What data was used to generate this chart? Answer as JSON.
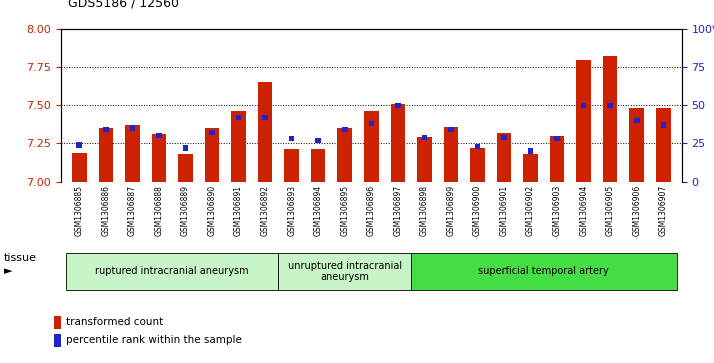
{
  "title": "GDS5186 / 12560",
  "samples": [
    "GSM1306885",
    "GSM1306886",
    "GSM1306887",
    "GSM1306888",
    "GSM1306889",
    "GSM1306890",
    "GSM1306891",
    "GSM1306892",
    "GSM1306893",
    "GSM1306894",
    "GSM1306895",
    "GSM1306896",
    "GSM1306897",
    "GSM1306898",
    "GSM1306899",
    "GSM1306900",
    "GSM1306901",
    "GSM1306902",
    "GSM1306903",
    "GSM1306904",
    "GSM1306905",
    "GSM1306906",
    "GSM1306907"
  ],
  "transformed_count": [
    7.19,
    7.35,
    7.37,
    7.31,
    7.18,
    7.35,
    7.46,
    7.65,
    7.21,
    7.21,
    7.35,
    7.46,
    7.51,
    7.29,
    7.36,
    7.22,
    7.32,
    7.18,
    7.3,
    7.8,
    7.82,
    7.48,
    7.48
  ],
  "percentile_rank": [
    24,
    34,
    35,
    30,
    22,
    32,
    42,
    42,
    28,
    27,
    34,
    38,
    50,
    29,
    34,
    23,
    29,
    20,
    28,
    50,
    50,
    40,
    37
  ],
  "ylim_left": [
    7.0,
    8.0
  ],
  "ylim_right": [
    0,
    100
  ],
  "yticks_left": [
    7.0,
    7.25,
    7.5,
    7.75,
    8.0
  ],
  "yticks_right": [
    0,
    25,
    50,
    75,
    100
  ],
  "groups": [
    {
      "label": "ruptured intracranial aneurysm",
      "start": 0,
      "end": 8
    },
    {
      "label": "unruptured intracranial\naneurysm",
      "start": 8,
      "end": 13
    },
    {
      "label": "superficial temporal artery",
      "start": 13,
      "end": 23
    }
  ],
  "group_colors": [
    "#C8F5C8",
    "#C8F5C8",
    "#44DD44"
  ],
  "bar_color_red": "#CC2200",
  "bar_color_blue": "#2222CC",
  "bar_width": 0.55,
  "plot_bg": "#FFFFFF",
  "xtick_bg": "#DDDDDD",
  "axis_color_left": "#CC2200",
  "axis_color_right": "#2222CC",
  "grid_yticks": [
    7.25,
    7.5,
    7.75
  ],
  "tissue_label": "tissue",
  "legend_items": [
    {
      "color": "#CC2200",
      "label": "transformed count"
    },
    {
      "color": "#2222CC",
      "label": "percentile rank within the sample"
    }
  ]
}
